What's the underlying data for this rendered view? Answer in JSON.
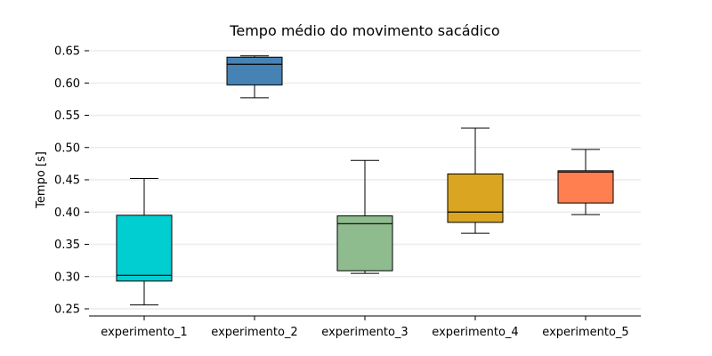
{
  "chart_data": {
    "type": "box",
    "title": "Tempo médio do movimento sacádico",
    "xlabel": "",
    "ylabel": "Tempo [s]",
    "ylim": [
      0.238,
      0.655
    ],
    "yticks": [
      "0.25",
      "0.30",
      "0.35",
      "0.40",
      "0.45",
      "0.50",
      "0.55",
      "0.60",
      "0.65"
    ],
    "grid": true,
    "series": [
      {
        "category": "experimento_1",
        "color": "#00CED1",
        "whisker_low": 0.256,
        "q1": 0.293,
        "median": 0.302,
        "q3": 0.395,
        "whisker_high": 0.452
      },
      {
        "category": "experimento_2",
        "color": "#4682B4",
        "whisker_low": 0.577,
        "q1": 0.597,
        "median": 0.629,
        "q3": 0.64,
        "whisker_high": 0.642
      },
      {
        "category": "experimento_3",
        "color": "#8FBC8F",
        "whisker_low": 0.305,
        "q1": 0.309,
        "median": 0.382,
        "q3": 0.394,
        "whisker_high": 0.48
      },
      {
        "category": "experimento_4",
        "color": "#DAA520",
        "whisker_low": 0.367,
        "q1": 0.384,
        "median": 0.4,
        "q3": 0.459,
        "whisker_high": 0.53
      },
      {
        "category": "experimento_5",
        "color": "#FF7F50",
        "whisker_low": 0.396,
        "q1": 0.414,
        "median": 0.462,
        "q3": 0.464,
        "whisker_high": 0.497
      }
    ]
  }
}
